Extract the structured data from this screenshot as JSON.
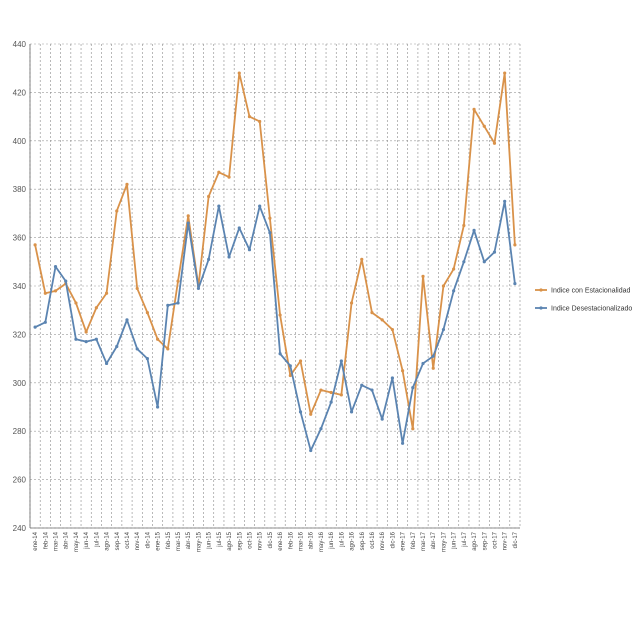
{
  "chart_data": {
    "type": "line",
    "title": "",
    "xlabel": "",
    "ylabel": "",
    "ylim": [
      240,
      440
    ],
    "yticks": [
      240,
      260,
      280,
      300,
      320,
      340,
      360,
      380,
      400,
      420,
      440
    ],
    "grid": "vertical and horizontal dotted",
    "legend_position": "right",
    "categories": [
      "ene-14",
      "feb-14",
      "mar-14",
      "abr-14",
      "may-14",
      "jun-14",
      "jul-14",
      "ago-14",
      "sep-14",
      "oct-14",
      "nov-14",
      "dic-14",
      "ene-15",
      "feb-15",
      "mar-15",
      "abr-15",
      "may-15",
      "jun-15",
      "jul-15",
      "ago-15",
      "sep-15",
      "oct-15",
      "nov-15",
      "dic-15",
      "ene-16",
      "feb-16",
      "mar-16",
      "abr-16",
      "may-16",
      "jun-16",
      "jul-16",
      "ago-16",
      "sep-16",
      "oct-16",
      "nov-16",
      "dic-16",
      "ene-17",
      "feb-17",
      "mar-17",
      "abr-17",
      "may-17",
      "jun-17",
      "jul-17",
      "ago-17",
      "sep-17",
      "oct-17",
      "nov-17",
      "dic-17"
    ],
    "series": [
      {
        "name": "Indice con Estacionalidad",
        "color": "#d9924a",
        "values": [
          357,
          337,
          338,
          341,
          333,
          321,
          331,
          337,
          371,
          382,
          339,
          329,
          318,
          314,
          342,
          369,
          340,
          377,
          387,
          385,
          428,
          410,
          408,
          368,
          328,
          303,
          309,
          287,
          297,
          296,
          295,
          333,
          351,
          329,
          326,
          322,
          305,
          281,
          344,
          306,
          340,
          347,
          365,
          413,
          406,
          399,
          428,
          357
        ]
      },
      {
        "name": "Indice Desestacionalizado",
        "color": "#5b84b1",
        "values": [
          323,
          325,
          348,
          342,
          318,
          317,
          318,
          308,
          315,
          326,
          314,
          310,
          290,
          332,
          333,
          366,
          339,
          351,
          373,
          352,
          364,
          355,
          373,
          362,
          312,
          307,
          288,
          272,
          281,
          292,
          309,
          288,
          299,
          297,
          285,
          302,
          275,
          298,
          308,
          311,
          322,
          338,
          350,
          363,
          350,
          354,
          375,
          341
        ]
      }
    ]
  }
}
